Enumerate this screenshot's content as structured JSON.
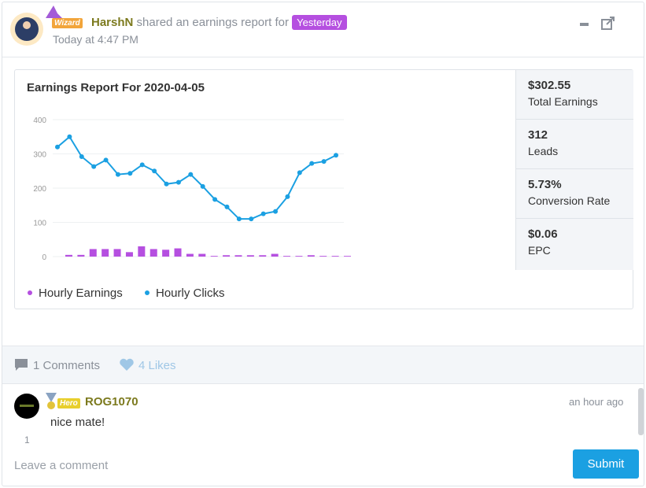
{
  "post": {
    "badge": "Wizard",
    "author": "HarshN",
    "action": "shared an earnings report for",
    "period": "Yesterday",
    "time": "Today at 4:47 PM"
  },
  "chart_data": {
    "type": "combo",
    "title": "Earnings Report For 2020-04-05",
    "categories": [
      null,
      null,
      null,
      null,
      null,
      null,
      null,
      null,
      null,
      null,
      null,
      null,
      null,
      null,
      null,
      null,
      null,
      null,
      null,
      null,
      null,
      null,
      null,
      null
    ],
    "series": [
      {
        "name": "Hourly Earnings",
        "type": "bar",
        "color": "#b54fe0",
        "values": [
          5,
          5,
          22,
          22,
          22,
          13,
          30,
          22,
          20,
          24,
          8,
          8,
          2,
          4,
          4,
          4,
          4,
          8,
          2,
          2,
          4,
          2,
          2,
          2
        ]
      },
      {
        "name": "Hourly Clicks",
        "type": "line",
        "color": "#1ba0e2",
        "values": [
          320,
          350,
          292,
          263,
          282,
          240,
          243,
          268,
          250,
          212,
          217,
          240,
          205,
          167,
          145,
          110,
          110,
          125,
          132,
          175,
          245,
          272,
          278,
          296
        ]
      }
    ],
    "ylim": [
      0,
      400
    ],
    "yticks": [
      0,
      100,
      200,
      300,
      400
    ],
    "grid": true
  },
  "stats": [
    {
      "value": "$302.55",
      "label": "Total Earnings"
    },
    {
      "value": "312",
      "label": "Leads"
    },
    {
      "value": "5.73%",
      "label": "Conversion Rate"
    },
    {
      "value": "$0.06",
      "label": "EPC"
    }
  ],
  "footer": {
    "comments": "1 Comments",
    "likes": "4 Likes"
  },
  "comment": {
    "badge": "Hero",
    "author": "ROG1070",
    "time": "an hour ago",
    "text": "nice mate!",
    "votes": "1"
  },
  "reply": {
    "placeholder": "Leave a comment",
    "button": "Submit"
  }
}
